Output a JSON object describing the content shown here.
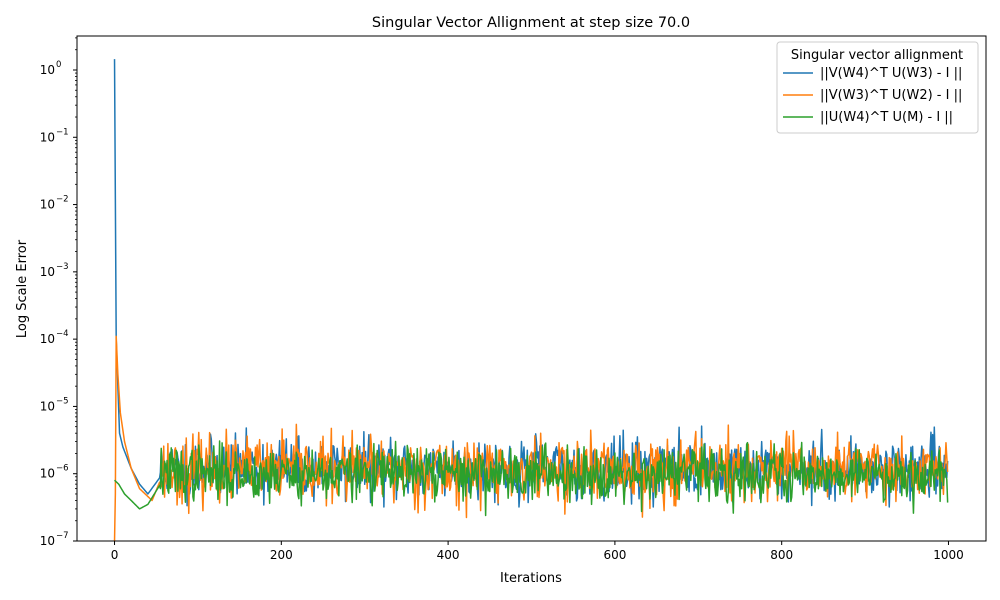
{
  "chart_data": {
    "type": "line",
    "title": "Singular Vector Allignment at step size 70.0",
    "xlabel": "Iterations",
    "ylabel": "Log Scale Error",
    "xlim": [
      -45,
      1045
    ],
    "ylim": [
      1e-07,
      3.2
    ],
    "yscale": "log",
    "grid": false,
    "x_ticks": [
      0,
      200,
      400,
      600,
      800,
      1000
    ],
    "x_tick_labels": [
      "0",
      "200",
      "400",
      "600",
      "800",
      "1000"
    ],
    "y_ticks": [
      {
        "value": 1e-07,
        "base": "10",
        "exp": "−7"
      },
      {
        "value": 1e-06,
        "base": "10",
        "exp": "−6"
      },
      {
        "value": 1e-05,
        "base": "10",
        "exp": "−5"
      },
      {
        "value": 0.0001,
        "base": "10",
        "exp": "−4"
      },
      {
        "value": 0.001,
        "base": "10",
        "exp": "−3"
      },
      {
        "value": 0.01,
        "base": "10",
        "exp": "−2"
      },
      {
        "value": 0.1,
        "base": "10",
        "exp": "−1"
      },
      {
        "value": 1,
        "base": "10",
        "exp": "0"
      }
    ],
    "legend": {
      "title": "Singular vector allignment",
      "position": "top-right"
    },
    "x_range": [
      0,
      999
    ],
    "series": [
      {
        "name": "||V(W4)^T U(W3) - I ||",
        "color": "#1f77b4",
        "anchors": [
          [
            0,
            1.45
          ],
          [
            2,
            0.0001
          ],
          [
            4,
            2e-05
          ],
          [
            6,
            4e-06
          ],
          [
            10,
            2.5e-06
          ],
          [
            20,
            1.2e-06
          ],
          [
            30,
            7e-07
          ],
          [
            40,
            5e-07
          ],
          [
            55,
            9e-07
          ]
        ],
        "steady": {
          "center": 1.2e-06,
          "log10_spread": 0.22,
          "min": 3.2e-07,
          "max": 5.1e-06,
          "seed": 11
        }
      },
      {
        "name": "||V(W3)^T U(W2) - I ||",
        "color": "#ff7f0e",
        "anchors": [
          [
            0,
            1e-07
          ],
          [
            1,
            5e-07
          ],
          [
            2,
            0.00011
          ],
          [
            4,
            3e-05
          ],
          [
            7,
            8e-06
          ],
          [
            12,
            3e-06
          ],
          [
            20,
            1.2e-06
          ],
          [
            30,
            6e-07
          ],
          [
            45,
            4e-07
          ],
          [
            55,
            8e-07
          ]
        ],
        "steady": {
          "center": 1.15e-06,
          "log10_spread": 0.24,
          "min": 2.2e-07,
          "max": 5.4e-06,
          "seed": 23
        }
      },
      {
        "name": "||U(W4)^T U(M) - I ||",
        "color": "#2ca02c",
        "anchors": [
          [
            0,
            8e-07
          ],
          [
            5,
            7e-07
          ],
          [
            12,
            5e-07
          ],
          [
            20,
            4e-07
          ],
          [
            30,
            3e-07
          ],
          [
            40,
            3.5e-07
          ],
          [
            55,
            7e-07
          ]
        ],
        "steady": {
          "center": 1e-06,
          "log10_spread": 0.2,
          "min": 2.2e-07,
          "max": 3.8e-06,
          "seed": 37
        }
      }
    ]
  }
}
